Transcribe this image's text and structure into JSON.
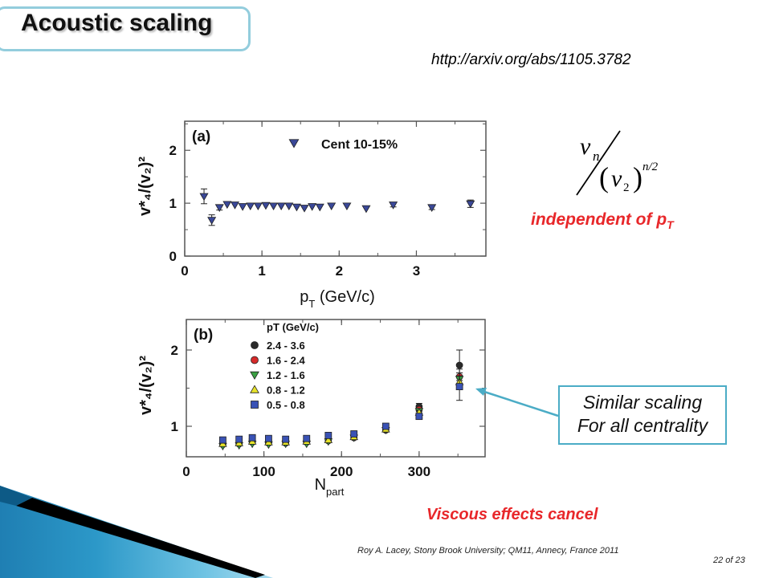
{
  "slide": {
    "title": "Acoustic scaling",
    "url": "http://arxiv.org/abs/1105.3782",
    "independent_text": "independent of p",
    "independent_sub": "T",
    "callout_line1": "Similar scaling",
    "callout_line2": "For all centrality",
    "viscous_text": "Viscous effects cancel",
    "footer": "Roy A. Lacey, Stony Brook University; QM11, Annecy, France 2011",
    "page": "22 of 23",
    "colors": {
      "accent_red": "#e8272a",
      "frame_blue": "#4bacc6"
    }
  },
  "formula": {
    "numer": "v",
    "numer_sub": "n",
    "denom": "v",
    "denom_sub": "2",
    "exponent": "n/2"
  },
  "chart_data": [
    {
      "type": "scatter",
      "panel_label": "(a)",
      "legend": [
        {
          "label": "Cent 10-15%",
          "marker": "triangle-down",
          "color": "#3a4898"
        }
      ],
      "xlabel": "p",
      "xlabel_sub": "T",
      "xlabel_unit": " (GeV/c)",
      "ylabel": "v*₄/(v₂)²",
      "xlim": [
        0,
        3.9
      ],
      "ylim": [
        0,
        2.55
      ],
      "xticks": [
        0,
        1,
        2,
        3
      ],
      "yticks": [
        0,
        1,
        2
      ],
      "series": [
        {
          "marker": "triangle-down",
          "color": "#3a4898",
          "x": [
            0.25,
            0.35,
            0.45,
            0.55,
            0.65,
            0.75,
            0.85,
            0.95,
            1.05,
            1.15,
            1.25,
            1.35,
            1.45,
            1.55,
            1.65,
            1.75,
            1.9,
            2.1,
            2.35,
            2.7,
            3.2,
            3.7
          ],
          "y": [
            1.13,
            0.68,
            0.92,
            0.98,
            0.97,
            0.94,
            0.95,
            0.95,
            0.96,
            0.95,
            0.95,
            0.95,
            0.93,
            0.91,
            0.94,
            0.93,
            0.95,
            0.95,
            0.9,
            0.97,
            0.92,
            0.99
          ],
          "err": [
            0.14,
            0.1,
            0.05,
            0.03,
            0.03,
            0.03,
            0.03,
            0.03,
            0.03,
            0.03,
            0.03,
            0.03,
            0.03,
            0.03,
            0.03,
            0.03,
            0.03,
            0.03,
            0.03,
            0.04,
            0.04,
            0.07
          ]
        }
      ]
    },
    {
      "type": "scatter",
      "panel_label": "(b)",
      "legend_title": "pT (GeV/c)",
      "xlabel": "N",
      "xlabel_sub": "part",
      "xlabel_unit": "",
      "ylabel": "v*₄/(v₂)²",
      "xlim": [
        0,
        385
      ],
      "ylim": [
        0.6,
        2.4
      ],
      "xticks": [
        0,
        100,
        200,
        300
      ],
      "yticks": [
        1,
        2
      ],
      "x": [
        47,
        68,
        85,
        106,
        128,
        155,
        183,
        216,
        257,
        300,
        352
      ],
      "series": [
        {
          "name": "2.4 - 3.6",
          "marker": "circle",
          "color": "#2a2a2a",
          "y": [
            0.78,
            0.8,
            0.83,
            0.81,
            0.81,
            0.82,
            0.84,
            0.88,
            0.97,
            1.26,
            1.8
          ],
          "err": [
            0,
            0,
            0,
            0,
            0,
            0,
            0,
            0,
            0,
            0.04,
            0.2
          ]
        },
        {
          "name": "1.6 - 2.4",
          "marker": "circle",
          "color": "#d62a2a",
          "y": [
            0.76,
            0.77,
            0.79,
            0.78,
            0.78,
            0.79,
            0.81,
            0.85,
            0.95,
            1.22,
            1.65
          ],
          "err": [
            0,
            0,
            0,
            0,
            0,
            0,
            0,
            0,
            0,
            0.03,
            0.1
          ]
        },
        {
          "name": "1.2 - 1.6",
          "marker": "triangle-down",
          "color": "#3aa043",
          "y": [
            0.74,
            0.75,
            0.77,
            0.76,
            0.77,
            0.77,
            0.8,
            0.85,
            0.95,
            1.2,
            1.62
          ],
          "err": [
            0,
            0,
            0,
            0,
            0,
            0,
            0,
            0,
            0,
            0.03,
            0.08
          ]
        },
        {
          "name": "0.8 - 1.2",
          "marker": "triangle-up",
          "color": "#e6e22a",
          "y": [
            0.77,
            0.78,
            0.8,
            0.79,
            0.79,
            0.8,
            0.82,
            0.86,
            0.96,
            1.18,
            1.58
          ],
          "err": [
            0,
            0,
            0,
            0,
            0,
            0,
            0,
            0,
            0,
            0.03,
            0.08
          ]
        },
        {
          "name": "0.5 - 0.8",
          "marker": "square",
          "color": "#3a52b5",
          "y": [
            0.82,
            0.83,
            0.85,
            0.84,
            0.83,
            0.84,
            0.88,
            0.9,
            1.0,
            1.13,
            1.52
          ],
          "err": [
            0,
            0,
            0,
            0,
            0,
            0,
            0,
            0,
            0,
            0.03,
            0.18
          ]
        }
      ]
    }
  ]
}
